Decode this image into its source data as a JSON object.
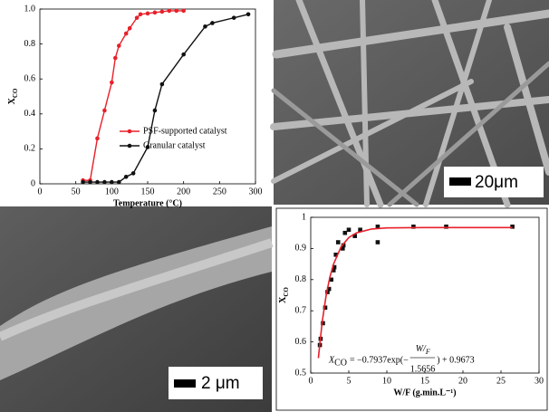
{
  "chart_data": [
    {
      "type": "line",
      "ylabel": "X",
      "ylabel_sub": "CO",
      "xlabel": "Temperature (°C)",
      "xlim": [
        0,
        300
      ],
      "xticks": [
        0,
        50,
        100,
        150,
        200,
        250,
        300
      ],
      "ylim": [
        0,
        1
      ],
      "yticks": [
        0,
        0.2,
        0.4,
        0.6,
        0.8,
        {
          "value": 1,
          "label": "1.0"
        }
      ],
      "legend": "lower right",
      "grid": false,
      "series": [
        {
          "name": "PSF-supported catalyst",
          "color": "#e8202a",
          "x": [
            60,
            70,
            80,
            90,
            100,
            105,
            110,
            120,
            125,
            135,
            140,
            150,
            160,
            170,
            180,
            190,
            200
          ],
          "values": [
            0.02,
            0.02,
            0.26,
            0.42,
            0.58,
            0.72,
            0.79,
            0.86,
            0.89,
            0.95,
            0.97,
            0.975,
            0.98,
            0.985,
            0.99,
            0.99,
            0.99
          ]
        },
        {
          "name": "Granular catalyst",
          "color": "#111111",
          "x": [
            60,
            70,
            80,
            90,
            100,
            110,
            120,
            130,
            150,
            160,
            170,
            200,
            230,
            240,
            270,
            290
          ],
          "values": [
            0.01,
            0.01,
            0.01,
            0.01,
            0.01,
            0.01,
            0.04,
            0.06,
            0.21,
            0.42,
            0.57,
            0.74,
            0.9,
            0.92,
            0.95,
            0.97
          ]
        }
      ]
    },
    {
      "type": "scatter",
      "ylabel": "X",
      "ylabel_sub": "CO",
      "xlabel": "W/F (g.min.L⁻¹)",
      "xlim": [
        0,
        30
      ],
      "xticks": [
        0,
        5,
        10,
        15,
        20,
        25,
        30
      ],
      "ylim": [
        0.5,
        1
      ],
      "yticks": [
        0.5,
        0.6,
        0.7,
        0.8,
        0.9,
        1
      ],
      "grid": false,
      "series": [
        {
          "color": "#111111",
          "style": "marker",
          "x": [
            1.2,
            1.3,
            1.6,
            1.9,
            2.2,
            2.4,
            2.7,
            3.0,
            3.1,
            3.3,
            3.6,
            4.2,
            4.3,
            4.5,
            5.0,
            5.8,
            6.5,
            8.8,
            8.8,
            13.5,
            17.8,
            26.5
          ],
          "values": [
            0.59,
            0.61,
            0.66,
            0.71,
            0.76,
            0.77,
            0.8,
            0.83,
            0.84,
            0.88,
            0.92,
            0.9,
            0.91,
            0.95,
            0.96,
            0.94,
            0.96,
            0.97,
            0.92,
            0.97,
            0.97,
            0.97
          ]
        },
        {
          "color": "#e8202a",
          "style": "line",
          "x": [
            1,
            1.5,
            2,
            2.5,
            3,
            4,
            5,
            6,
            8,
            10,
            15,
            20,
            26.5
          ],
          "values": [
            0.548,
            0.663,
            0.746,
            0.807,
            0.85,
            0.906,
            0.935,
            0.95,
            0.9625,
            0.966,
            0.967,
            0.967,
            0.967
          ]
        }
      ],
      "equation": {
        "lhs": "X",
        "lhs_sub": "CO",
        "mid": "= −0.7937exp(−",
        "num": "W",
        "num_slash": "/",
        "num_sub": "F",
        "den": "1.5656",
        "tail": ") + 0.9673"
      }
    }
  ],
  "images": [
    {
      "scale_label": "20μm"
    },
    {
      "scale_label": "2 μm"
    }
  ]
}
